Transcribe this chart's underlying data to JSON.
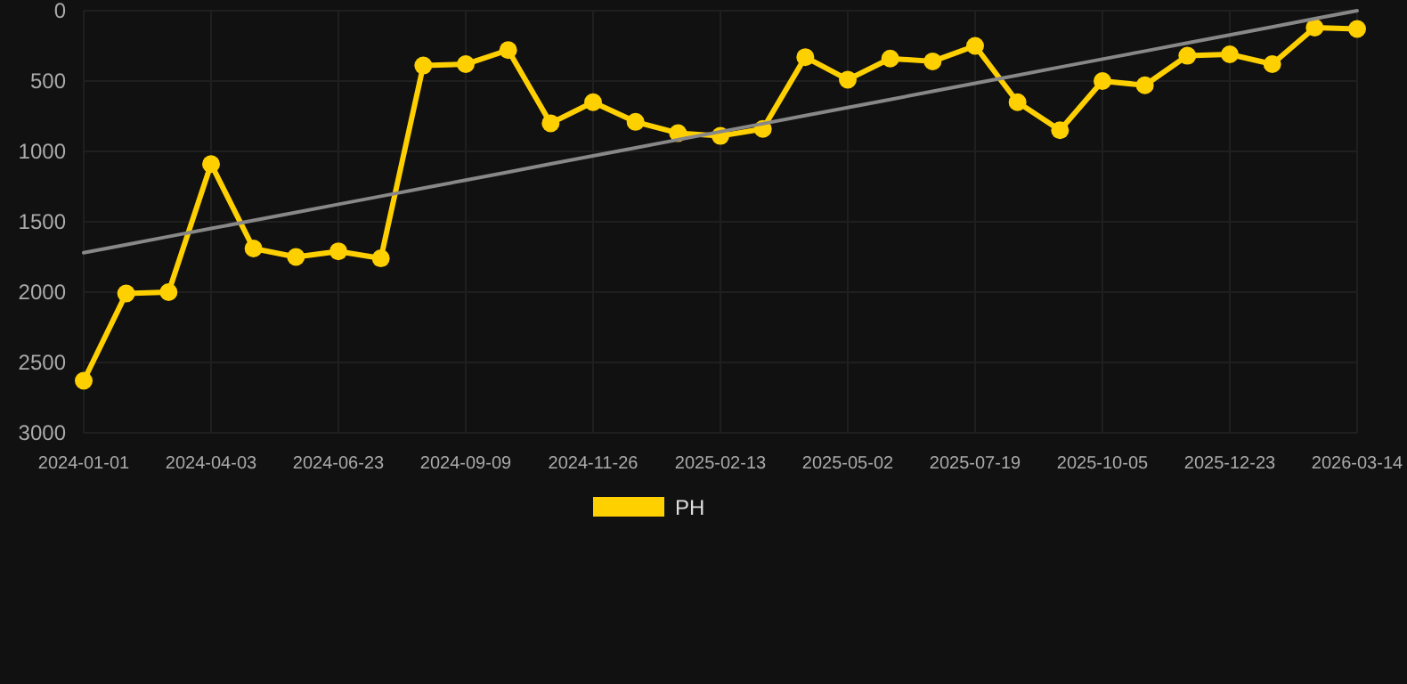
{
  "chart_data": {
    "type": "line",
    "categories": [
      "2024-01-01",
      null,
      null,
      "2024-04-03",
      null,
      null,
      "2024-06-23",
      null,
      null,
      "2024-09-09",
      null,
      null,
      "2024-11-26",
      null,
      null,
      "2025-02-13",
      null,
      null,
      "2025-05-02",
      null,
      null,
      "2025-07-19",
      null,
      null,
      "2025-10-05",
      null,
      null,
      "2025-12-23",
      null,
      null,
      "2026-03-14"
    ],
    "series": [
      {
        "name": "PH",
        "color": "#ffd000",
        "marker": "circle",
        "values": [
          2630,
          2010,
          2000,
          1090,
          1690,
          1750,
          1710,
          1760,
          390,
          380,
          280,
          800,
          650,
          790,
          870,
          890,
          840,
          330,
          490,
          340,
          360,
          250,
          650,
          850,
          500,
          530,
          320,
          310,
          380,
          120,
          130
        ]
      },
      {
        "type": "line",
        "color": "#888888",
        "marker": "none",
        "values": [
          1720,
          1663,
          1605,
          1548,
          1491,
          1433,
          1376,
          1319,
          1261,
          1204,
          1147,
          1089,
          1032,
          975,
          917,
          860,
          803,
          745,
          688,
          631,
          573,
          516,
          459,
          401,
          344,
          287,
          229,
          172,
          115,
          57,
          0
        ]
      }
    ],
    "ylim": [
      3000,
      0
    ],
    "yticks": [
      0,
      500,
      1000,
      1500,
      2000,
      2500,
      3000
    ],
    "grid": true,
    "legend": "bottom",
    "line_style": "solid"
  }
}
